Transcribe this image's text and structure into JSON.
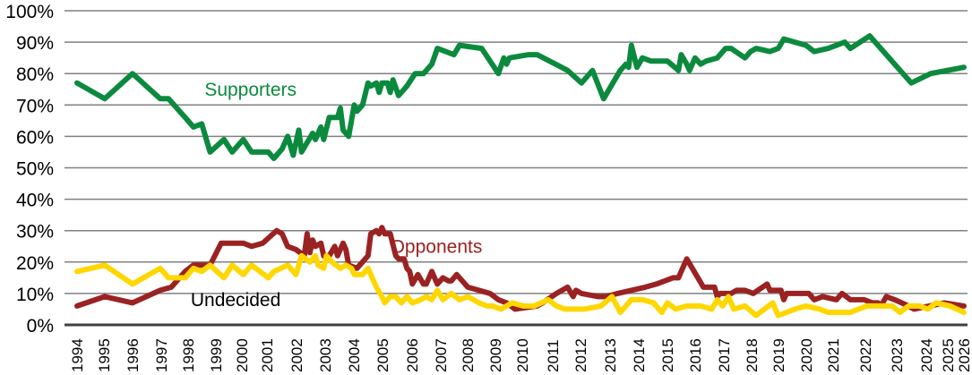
{
  "chart_data": {
    "type": "line",
    "title": "",
    "xlabel": "",
    "ylabel": "",
    "ylim": [
      0,
      100
    ],
    "xlim": [
      1994,
      2026
    ],
    "grid": true,
    "legend": "inline labels",
    "y_ticks": [
      "0%",
      "10%",
      "20%",
      "30%",
      "40%",
      "50%",
      "60%",
      "70%",
      "80%",
      "90%",
      "100%"
    ],
    "x_ticks": [
      "1994",
      "1995",
      "1996",
      "1997",
      "1998",
      "1999",
      "2000",
      "2001",
      "2002",
      "2003",
      "2004",
      "2005",
      "2006",
      "2007",
      "2008",
      "2009",
      "2010",
      "2011",
      "2012",
      "2013",
      "2014",
      "2015",
      "2016",
      "2017",
      "2018",
      "2019",
      "2020",
      "2021",
      "2022",
      "2023",
      "2024",
      "2025",
      "2026"
    ],
    "annotations": [
      {
        "text": "Supporters",
        "x": 1998.6,
        "y": 75,
        "color": "#0b8a3e"
      },
      {
        "text": "Opponents",
        "x": 2005.3,
        "y": 25,
        "color": "#9b2222"
      },
      {
        "text": "Undecided",
        "x": 1998.1,
        "y": 8,
        "color": "#000000"
      }
    ],
    "series": [
      {
        "name": "Supporters",
        "color": "#0b8a3e",
        "points": [
          [
            1994.0,
            77
          ],
          [
            1995.0,
            72
          ],
          [
            1996.0,
            80
          ],
          [
            1997.0,
            72
          ],
          [
            1997.3,
            72
          ],
          [
            1997.9,
            66
          ],
          [
            1998.2,
            63
          ],
          [
            1998.5,
            64
          ],
          [
            1998.8,
            55
          ],
          [
            1999.3,
            59
          ],
          [
            1999.6,
            55
          ],
          [
            2000.0,
            59
          ],
          [
            2000.3,
            55
          ],
          [
            2000.9,
            55
          ],
          [
            2001.1,
            53
          ],
          [
            2001.4,
            56
          ],
          [
            2001.6,
            60
          ],
          [
            2001.8,
            54
          ],
          [
            2002.0,
            62
          ],
          [
            2002.1,
            55
          ],
          [
            2002.3,
            58
          ],
          [
            2002.5,
            61
          ],
          [
            2002.6,
            59
          ],
          [
            2002.8,
            63
          ],
          [
            2002.9,
            59
          ],
          [
            2003.1,
            66
          ],
          [
            2003.4,
            66
          ],
          [
            2003.5,
            69
          ],
          [
            2003.6,
            62
          ],
          [
            2003.8,
            60
          ],
          [
            2004.0,
            70
          ],
          [
            2004.1,
            68
          ],
          [
            2004.3,
            70
          ],
          [
            2004.5,
            77
          ],
          [
            2004.6,
            76
          ],
          [
            2004.8,
            77
          ],
          [
            2004.9,
            74
          ],
          [
            2005.0,
            77
          ],
          [
            2005.2,
            77
          ],
          [
            2005.3,
            74
          ],
          [
            2005.4,
            78
          ],
          [
            2005.6,
            73
          ],
          [
            2005.9,
            76
          ],
          [
            2006.2,
            80
          ],
          [
            2006.5,
            80
          ],
          [
            2006.8,
            83
          ],
          [
            2007.0,
            88
          ],
          [
            2007.6,
            86
          ],
          [
            2007.8,
            89
          ],
          [
            2008.6,
            88
          ],
          [
            2009.2,
            80
          ],
          [
            2009.4,
            85
          ],
          [
            2009.5,
            83
          ],
          [
            2009.6,
            85
          ],
          [
            2010.3,
            86
          ],
          [
            2010.6,
            86
          ],
          [
            2011.7,
            81
          ],
          [
            2012.2,
            77
          ],
          [
            2012.6,
            81
          ],
          [
            2013.0,
            72
          ],
          [
            2013.6,
            81
          ],
          [
            2013.8,
            83
          ],
          [
            2013.9,
            82
          ],
          [
            2014.0,
            89
          ],
          [
            2014.2,
            82
          ],
          [
            2014.4,
            85
          ],
          [
            2014.7,
            84
          ],
          [
            2015.3,
            84
          ],
          [
            2015.7,
            81
          ],
          [
            2015.8,
            86
          ],
          [
            2016.0,
            83
          ],
          [
            2016.1,
            81
          ],
          [
            2016.3,
            85
          ],
          [
            2016.5,
            83
          ],
          [
            2016.7,
            84
          ],
          [
            2017.1,
            85
          ],
          [
            2017.4,
            88
          ],
          [
            2017.6,
            88
          ],
          [
            2018.1,
            85
          ],
          [
            2018.3,
            87
          ],
          [
            2018.5,
            88
          ],
          [
            2019.0,
            87
          ],
          [
            2019.3,
            88
          ],
          [
            2019.5,
            91
          ],
          [
            2020.3,
            89
          ],
          [
            2020.6,
            87
          ],
          [
            2021.1,
            88
          ],
          [
            2021.7,
            90
          ],
          [
            2021.9,
            88
          ],
          [
            2022.6,
            92
          ],
          [
            2024.1,
            77
          ],
          [
            2024.8,
            80
          ],
          [
            2026.0,
            82
          ]
        ]
      },
      {
        "name": "Opponents",
        "color": "#9b2222",
        "points": [
          [
            1994.0,
            6
          ],
          [
            1995.0,
            9
          ],
          [
            1996.0,
            7
          ],
          [
            1997.0,
            11
          ],
          [
            1997.4,
            12
          ],
          [
            1997.9,
            17
          ],
          [
            1998.2,
            19
          ],
          [
            1998.8,
            19
          ],
          [
            1999.2,
            26
          ],
          [
            2000.0,
            26
          ],
          [
            2000.3,
            25
          ],
          [
            2000.7,
            26
          ],
          [
            2001.2,
            30
          ],
          [
            2001.4,
            29
          ],
          [
            2001.6,
            25
          ],
          [
            2001.9,
            24
          ],
          [
            2002.2,
            22
          ],
          [
            2002.3,
            29
          ],
          [
            2002.4,
            23
          ],
          [
            2002.5,
            27
          ],
          [
            2002.6,
            25
          ],
          [
            2002.8,
            26
          ],
          [
            2002.9,
            22
          ],
          [
            2003.1,
            22
          ],
          [
            2003.3,
            25
          ],
          [
            2003.4,
            22
          ],
          [
            2003.6,
            26
          ],
          [
            2003.7,
            24
          ],
          [
            2003.8,
            19
          ],
          [
            2004.1,
            18
          ],
          [
            2004.3,
            20
          ],
          [
            2004.5,
            22
          ],
          [
            2004.6,
            29
          ],
          [
            2004.8,
            30
          ],
          [
            2004.9,
            29
          ],
          [
            2005.0,
            31
          ],
          [
            2005.1,
            29
          ],
          [
            2005.3,
            29
          ],
          [
            2005.5,
            22
          ],
          [
            2005.6,
            21
          ],
          [
            2005.8,
            21
          ],
          [
            2005.9,
            18
          ],
          [
            2006.0,
            17
          ],
          [
            2006.1,
            13
          ],
          [
            2006.3,
            16
          ],
          [
            2006.5,
            13
          ],
          [
            2006.6,
            13
          ],
          [
            2006.8,
            17
          ],
          [
            2007.0,
            13
          ],
          [
            2007.2,
            15
          ],
          [
            2007.4,
            14
          ],
          [
            2007.5,
            14
          ],
          [
            2007.7,
            16
          ],
          [
            2008.1,
            12
          ],
          [
            2008.5,
            11
          ],
          [
            2008.9,
            10
          ],
          [
            2009.2,
            8
          ],
          [
            2009.5,
            7
          ],
          [
            2009.8,
            5
          ],
          [
            2010.6,
            6
          ],
          [
            2010.8,
            7
          ],
          [
            2011.3,
            10
          ],
          [
            2011.7,
            12
          ],
          [
            2011.9,
            9
          ],
          [
            2012.0,
            11
          ],
          [
            2012.2,
            10
          ],
          [
            2012.8,
            9
          ],
          [
            2013.1,
            9
          ],
          [
            2013.5,
            10
          ],
          [
            2014.5,
            12
          ],
          [
            2014.9,
            13
          ],
          [
            2015.2,
            14
          ],
          [
            2015.5,
            15
          ],
          [
            2015.7,
            15
          ],
          [
            2016.0,
            21
          ],
          [
            2016.6,
            12
          ],
          [
            2016.8,
            12
          ],
          [
            2017.0,
            12
          ],
          [
            2017.1,
            9
          ],
          [
            2017.2,
            10
          ],
          [
            2017.6,
            10
          ],
          [
            2017.8,
            11
          ],
          [
            2018.1,
            11
          ],
          [
            2018.4,
            10
          ],
          [
            2018.9,
            13
          ],
          [
            2019.0,
            11
          ],
          [
            2019.4,
            11
          ],
          [
            2019.5,
            8
          ],
          [
            2019.6,
            10
          ],
          [
            2019.9,
            10
          ],
          [
            2020.1,
            10
          ],
          [
            2020.4,
            10
          ],
          [
            2020.6,
            8
          ],
          [
            2020.9,
            9
          ],
          [
            2021.4,
            8
          ],
          [
            2021.6,
            10
          ],
          [
            2021.9,
            8
          ],
          [
            2022.4,
            8
          ],
          [
            2022.7,
            7
          ],
          [
            2022.9,
            7
          ],
          [
            2023.0,
            6
          ],
          [
            2023.2,
            9
          ],
          [
            2023.5,
            8
          ],
          [
            2024.0,
            6
          ],
          [
            2024.2,
            5
          ],
          [
            2025.3,
            7
          ],
          [
            2026.0,
            6
          ]
        ]
      },
      {
        "name": "Undecided",
        "color": "#ffd700",
        "points": [
          [
            1994.0,
            17
          ],
          [
            1995.0,
            19
          ],
          [
            1996.0,
            13
          ],
          [
            1997.0,
            18
          ],
          [
            1997.3,
            15
          ],
          [
            1997.9,
            15
          ],
          [
            1998.2,
            18
          ],
          [
            1998.5,
            17
          ],
          [
            1998.8,
            19
          ],
          [
            1999.3,
            15
          ],
          [
            1999.6,
            19
          ],
          [
            2000.0,
            16
          ],
          [
            2000.3,
            19
          ],
          [
            2000.9,
            15
          ],
          [
            2001.1,
            17
          ],
          [
            2001.6,
            19
          ],
          [
            2001.9,
            16
          ],
          [
            2002.1,
            22
          ],
          [
            2002.4,
            20
          ],
          [
            2002.6,
            22
          ],
          [
            2002.7,
            19
          ],
          [
            2002.9,
            18
          ],
          [
            2003.0,
            22
          ],
          [
            2003.2,
            20
          ],
          [
            2003.5,
            18
          ],
          [
            2003.7,
            19
          ],
          [
            2003.9,
            18
          ],
          [
            2004.0,
            16
          ],
          [
            2004.3,
            16
          ],
          [
            2004.5,
            18
          ],
          [
            2004.8,
            12
          ],
          [
            2005.0,
            9
          ],
          [
            2005.1,
            7
          ],
          [
            2005.3,
            9
          ],
          [
            2005.5,
            9
          ],
          [
            2005.7,
            7
          ],
          [
            2005.9,
            9
          ],
          [
            2006.1,
            7
          ],
          [
            2006.4,
            8
          ],
          [
            2006.6,
            9
          ],
          [
            2006.8,
            8
          ],
          [
            2007.0,
            11
          ],
          [
            2007.2,
            8
          ],
          [
            2007.5,
            10
          ],
          [
            2007.8,
            8
          ],
          [
            2008.1,
            9
          ],
          [
            2008.5,
            7
          ],
          [
            2008.8,
            6
          ],
          [
            2009.0,
            6
          ],
          [
            2009.3,
            5
          ],
          [
            2009.7,
            7
          ],
          [
            2010.1,
            6
          ],
          [
            2010.5,
            6
          ],
          [
            2011.0,
            8
          ],
          [
            2011.3,
            6
          ],
          [
            2011.6,
            5
          ],
          [
            2012.3,
            5
          ],
          [
            2012.9,
            6
          ],
          [
            2013.3,
            9
          ],
          [
            2013.6,
            4
          ],
          [
            2014.0,
            8
          ],
          [
            2014.4,
            8
          ],
          [
            2014.8,
            7
          ],
          [
            2015.1,
            4
          ],
          [
            2015.3,
            7
          ],
          [
            2015.6,
            5
          ],
          [
            2016.0,
            6
          ],
          [
            2016.5,
            6
          ],
          [
            2016.9,
            5
          ],
          [
            2017.1,
            8
          ],
          [
            2017.3,
            6
          ],
          [
            2017.5,
            9
          ],
          [
            2017.7,
            5
          ],
          [
            2018.1,
            6
          ],
          [
            2018.5,
            3
          ],
          [
            2019.1,
            7
          ],
          [
            2019.3,
            3
          ],
          [
            2019.9,
            5
          ],
          [
            2020.3,
            6
          ],
          [
            2020.8,
            5
          ],
          [
            2021.1,
            4
          ],
          [
            2021.4,
            4
          ],
          [
            2021.9,
            4
          ],
          [
            2022.2,
            5
          ],
          [
            2022.5,
            6
          ],
          [
            2023.4,
            6
          ],
          [
            2023.7,
            4
          ],
          [
            2024.0,
            6
          ],
          [
            2024.4,
            6
          ],
          [
            2024.7,
            5
          ],
          [
            2025.0,
            7
          ],
          [
            2025.5,
            6
          ],
          [
            2026.0,
            4
          ]
        ]
      }
    ]
  },
  "colors": {
    "supporters": "#0b8a3e",
    "opponents": "#9b2222",
    "undecided": "#ffd700",
    "grid": "#808080",
    "axis": "#404040"
  }
}
